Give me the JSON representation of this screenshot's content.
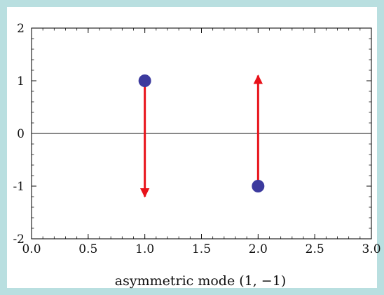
{
  "chart_data": {
    "type": "scatter",
    "title": "",
    "xlabel": "asymmetric mode (1, −1)",
    "ylabel": "",
    "xlim": [
      0.0,
      3.0
    ],
    "ylim": [
      -2,
      2
    ],
    "x_ticks": [
      "0.0",
      "0.5",
      "1.0",
      "1.5",
      "2.0",
      "2.5",
      "3.0"
    ],
    "y_ticks": [
      "2",
      "1",
      "0",
      "-1",
      "-2"
    ],
    "zero_line": true,
    "grid": false,
    "points": [
      {
        "x": 1.0,
        "y": 1.0
      },
      {
        "x": 2.0,
        "y": -1.0
      }
    ],
    "arrows": [
      {
        "x": 1.0,
        "y_from": 1.0,
        "y_to": -1.2
      },
      {
        "x": 2.0,
        "y_from": -0.95,
        "y_to": 1.1
      }
    ],
    "colors": {
      "point": "#3c3a9e",
      "arrow": "#e8121a",
      "axis": "#111111",
      "background": "#b9dfe0"
    }
  }
}
